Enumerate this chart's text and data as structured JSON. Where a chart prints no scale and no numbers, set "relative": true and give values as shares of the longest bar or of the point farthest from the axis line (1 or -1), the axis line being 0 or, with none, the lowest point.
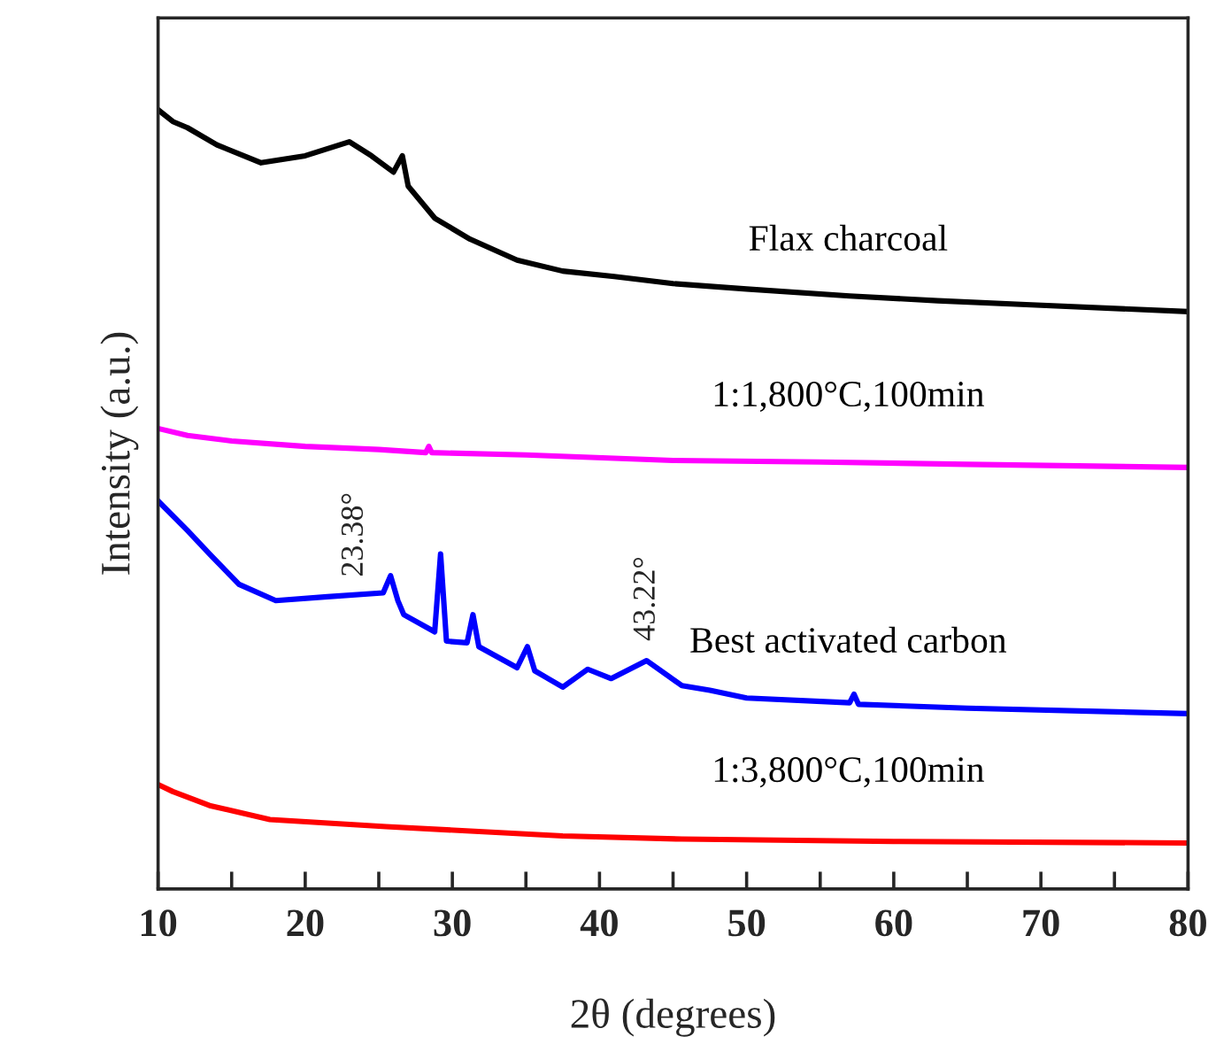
{
  "chart_data": {
    "type": "line",
    "relative": true,
    "xlabel": "2θ (degrees)",
    "ylabel": "Intensity (a.u.)",
    "xlim": [
      10,
      80
    ],
    "xticks": [
      10,
      {
        "value": 15,
        "label": null
      },
      20,
      {
        "value": 25,
        "label": null
      },
      30,
      {
        "value": 35,
        "label": null
      },
      40,
      {
        "value": 45,
        "label": null
      },
      50,
      {
        "value": 55,
        "label": null
      },
      60,
      {
        "value": 65,
        "label": null
      },
      70,
      {
        "value": 75,
        "label": null
      },
      80
    ],
    "tick_labels": "x",
    "series": [
      {
        "name": "Flax charcoal",
        "color": "#000000",
        "x": [
          10,
          11,
          12,
          14,
          17,
          20,
          23,
          24.5,
          26,
          26.6,
          27,
          28.8,
          31.2,
          34.4,
          37.5,
          41,
          45,
          50,
          57,
          63,
          69,
          80
        ],
        "values": [
          1.0,
          0.985,
          0.977,
          0.955,
          0.932,
          0.941,
          0.959,
          0.941,
          0.92,
          0.941,
          0.902,
          0.861,
          0.834,
          0.807,
          0.793,
          0.786,
          0.777,
          0.77,
          0.761,
          0.755,
          0.75,
          0.741
        ]
      },
      {
        "name": "1:1,800°C,100min",
        "color": "#ff00ff",
        "x": [
          10,
          12,
          15,
          20,
          25,
          28.2,
          28.4,
          28.6,
          35,
          45,
          55,
          65,
          80
        ],
        "values": [
          0.591,
          0.582,
          0.575,
          0.568,
          0.564,
          0.56,
          0.568,
          0.56,
          0.557,
          0.55,
          0.548,
          0.545,
          0.541
        ]
      },
      {
        "name": "Best activated carbon",
        "color": "#0000ff",
        "x": [
          10,
          12,
          13.5,
          15.5,
          18,
          21.5,
          25.3,
          25.8,
          26.3,
          26.7,
          28.8,
          29.2,
          29.6,
          31,
          31.4,
          31.8,
          34.4,
          35.1,
          35.6,
          37.5,
          39.2,
          40.8,
          43.2,
          45.6,
          47.5,
          50,
          57,
          57.3,
          57.6,
          65,
          80
        ],
        "values": [
          0.498,
          0.46,
          0.43,
          0.391,
          0.37,
          0.375,
          0.38,
          0.402,
          0.37,
          0.352,
          0.33,
          0.43,
          0.318,
          0.316,
          0.352,
          0.311,
          0.284,
          0.311,
          0.28,
          0.259,
          0.282,
          0.27,
          0.293,
          0.261,
          0.255,
          0.245,
          0.239,
          0.25,
          0.237,
          0.232,
          0.225
        ]
      },
      {
        "name": "1:3,800°C,100min",
        "color": "#ff0000",
        "x": [
          10,
          11,
          13.5,
          17.6,
          25.5,
          37.5,
          45.6,
          60,
          80
        ],
        "values": [
          0.134,
          0.125,
          0.107,
          0.089,
          0.08,
          0.068,
          0.064,
          0.061,
          0.059
        ]
      }
    ],
    "annotations": [
      {
        "text": "23.38°",
        "x": 23.38,
        "y": 0.375
      },
      {
        "text": "43.22°",
        "x": 43.22,
        "y": 0.293
      }
    ]
  }
}
